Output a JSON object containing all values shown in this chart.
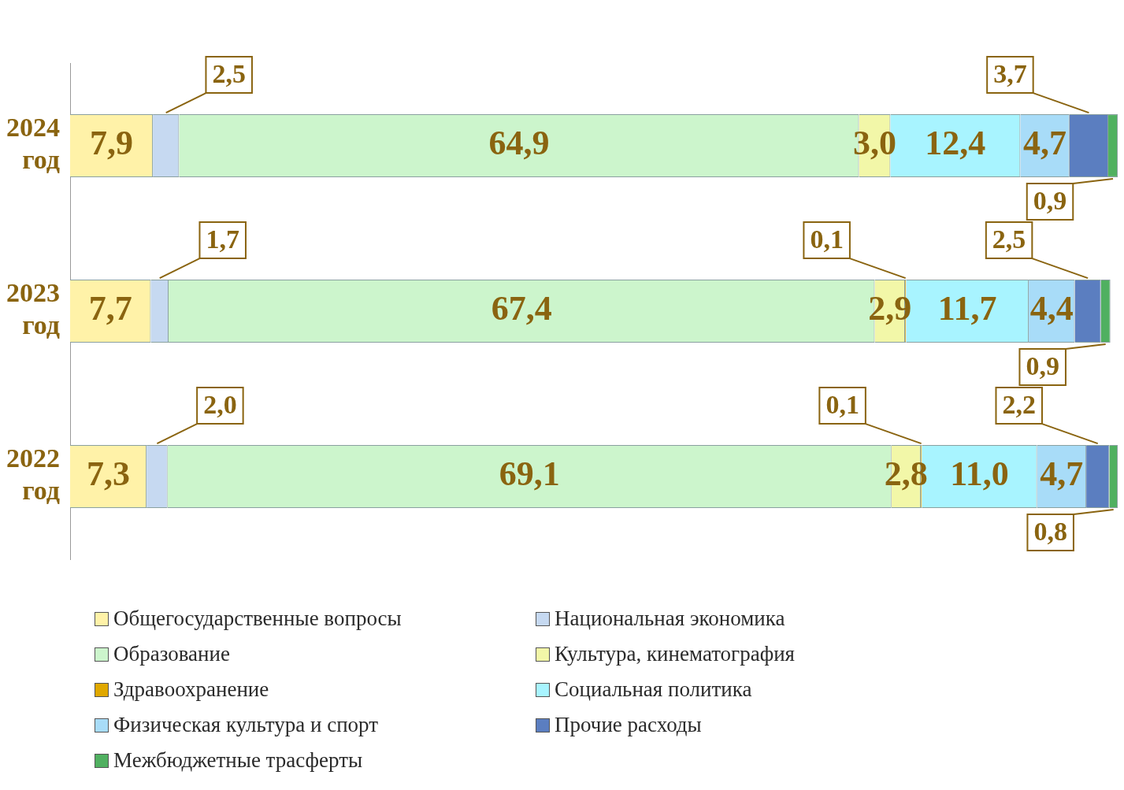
{
  "chart_data": {
    "type": "bar",
    "orientation": "horizontal",
    "stacked": true,
    "categories": [
      "2024 год",
      "2023 год",
      "2022 год"
    ],
    "xlim": [
      0,
      100
    ],
    "tick_labels": "y",
    "grid": false,
    "legend": "bottom",
    "series": [
      {
        "name": "Общегосударственные вопросы",
        "color": "#fff2a8",
        "values": [
          7.9,
          7.7,
          7.3
        ],
        "value_labels": [
          "7,9",
          "7,7",
          "7,3"
        ]
      },
      {
        "name": "Национальная экономика",
        "color": "#c6d9f1",
        "values": [
          2.5,
          1.7,
          2.0
        ],
        "value_labels": [
          "2,5",
          "1,7",
          "2,0"
        ]
      },
      {
        "name": "Образование",
        "color": "#ccf5cc",
        "values": [
          64.9,
          67.4,
          69.1
        ],
        "value_labels": [
          "64,9",
          "67,4",
          "69,1"
        ]
      },
      {
        "name": "Культура, кинематография",
        "color": "#f2f7a8",
        "values": [
          3.0,
          2.9,
          2.8
        ],
        "value_labels": [
          "3,0",
          "2,9",
          "2,8"
        ]
      },
      {
        "name": "Здравоохранение",
        "color": "#e0a800",
        "values": [
          null,
          0.1,
          0.1
        ],
        "value_labels": [
          null,
          "0,1",
          "0,1"
        ]
      },
      {
        "name": "Социальная политика",
        "color": "#a8f4ff",
        "values": [
          12.4,
          11.7,
          11.0
        ],
        "value_labels": [
          "12,4",
          "11,7",
          "11,0"
        ]
      },
      {
        "name": "Физическая культура и спорт",
        "color": "#a8dcf8",
        "values": [
          4.7,
          4.4,
          4.7
        ],
        "value_labels": [
          "4,7",
          "4,4",
          "4,7"
        ]
      },
      {
        "name": "Прочие расходы",
        "color": "#5b7ec0",
        "values": [
          3.7,
          2.5,
          2.2
        ],
        "value_labels": [
          "3,7",
          "2,5",
          "2,2"
        ]
      },
      {
        "name": "Межбюджетные трасферты",
        "color": "#50b060",
        "values": [
          0.9,
          0.9,
          0.8
        ],
        "value_labels": [
          "0,9",
          "0,9",
          "0,8"
        ]
      }
    ]
  }
}
